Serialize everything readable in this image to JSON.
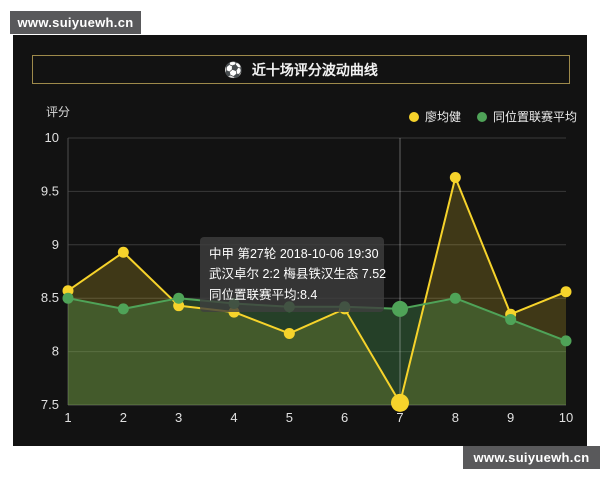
{
  "watermark_top": {
    "text": "www.suiyuewh.cn"
  },
  "watermark_bottom": {
    "text": "www.suiyuewh.cn"
  },
  "header": {
    "icon": "⚽",
    "title": "近十场评分波动曲线"
  },
  "axis_name": "评分",
  "tooltip": {
    "lines": [
      "中甲 第27轮 2018-10-06 19:30",
      "武汉卓尔 2:2 梅县铁汉生态 7.52",
      "同位置联赛平均:8.4"
    ]
  },
  "colors": {
    "panel_bg": "#121212",
    "title_border": "#9e8a4b",
    "gridline": "#3a3a3a",
    "axis_line": "#4d4d4d",
    "tick_label": "#e0e0e0",
    "pointer_line": "rgba(255,255,255,0.35)",
    "watermark_bg": "#59595b",
    "tooltip_bg": "rgba(62,62,62,0.80)"
  },
  "chart_data": {
    "type": "line",
    "title": "近十场评分波动曲线",
    "xlabel": "",
    "ylabel": "评分",
    "x": [
      1,
      2,
      3,
      4,
      5,
      6,
      7,
      8,
      9,
      10
    ],
    "ylim": [
      7.5,
      10
    ],
    "y_ticks": [
      10,
      9.5,
      9,
      8.5,
      8,
      7.5
    ],
    "grid": true,
    "legend_position": "top-right",
    "highlight_x": 7,
    "series": [
      {
        "name": "廖均健",
        "color": "#f6d32b",
        "area_color": "rgba(246,211,43,0.20)",
        "values": [
          8.57,
          8.93,
          8.43,
          8.37,
          8.17,
          8.4,
          7.52,
          9.63,
          8.35,
          8.56
        ]
      },
      {
        "name": "同位置联赛平均",
        "color": "#4fa358",
        "area_color": "rgba(79,163,88,0.32)",
        "values": [
          8.5,
          8.4,
          8.5,
          8.45,
          8.42,
          8.42,
          8.4,
          8.5,
          8.3,
          8.1
        ]
      }
    ]
  }
}
